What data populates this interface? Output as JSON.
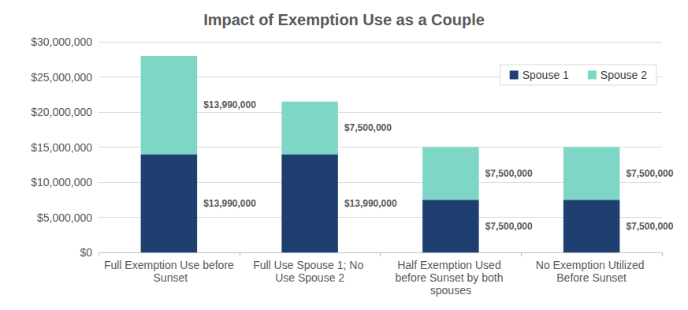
{
  "chart_data": {
    "type": "bar",
    "title": "Impact of Exemption Use as a Couple",
    "categories": [
      "Full Exemption Use before Sunset",
      "Full Use Spouse 1; No Use Spouse 2",
      "Half Exemption Used before Sunset by both spouses",
      "No Exemption Utilized Before Sunset"
    ],
    "series": [
      {
        "name": "Spouse 1",
        "color": "#1e3f6f",
        "values": [
          13990000,
          13990000,
          7500000,
          7500000
        ],
        "value_labels": [
          "$13,990,000",
          "$13,990,000",
          "$7,500,000",
          "$7,500,000"
        ]
      },
      {
        "name": "Spouse 2",
        "color": "#7ed6c6",
        "values": [
          13990000,
          7500000,
          7500000,
          7500000
        ],
        "value_labels": [
          "$13,990,000",
          "$7,500,000",
          "$7,500,000",
          "$7,500,000"
        ]
      }
    ],
    "ylim": [
      0,
      30000000
    ],
    "yticks": [
      {
        "value": 0,
        "label": "$0"
      },
      {
        "value": 5000000,
        "label": "$5,000,000"
      },
      {
        "value": 10000000,
        "label": "$10,000,000"
      },
      {
        "value": 15000000,
        "label": "$15,000,000"
      },
      {
        "value": 20000000,
        "label": "$20,000,000"
      },
      {
        "value": 25000000,
        "label": "$25,000,000"
      },
      {
        "value": 30000000,
        "label": "$30,000,000"
      }
    ],
    "grid": true,
    "stacked": true,
    "data_labels": true,
    "legend": "upper right"
  }
}
